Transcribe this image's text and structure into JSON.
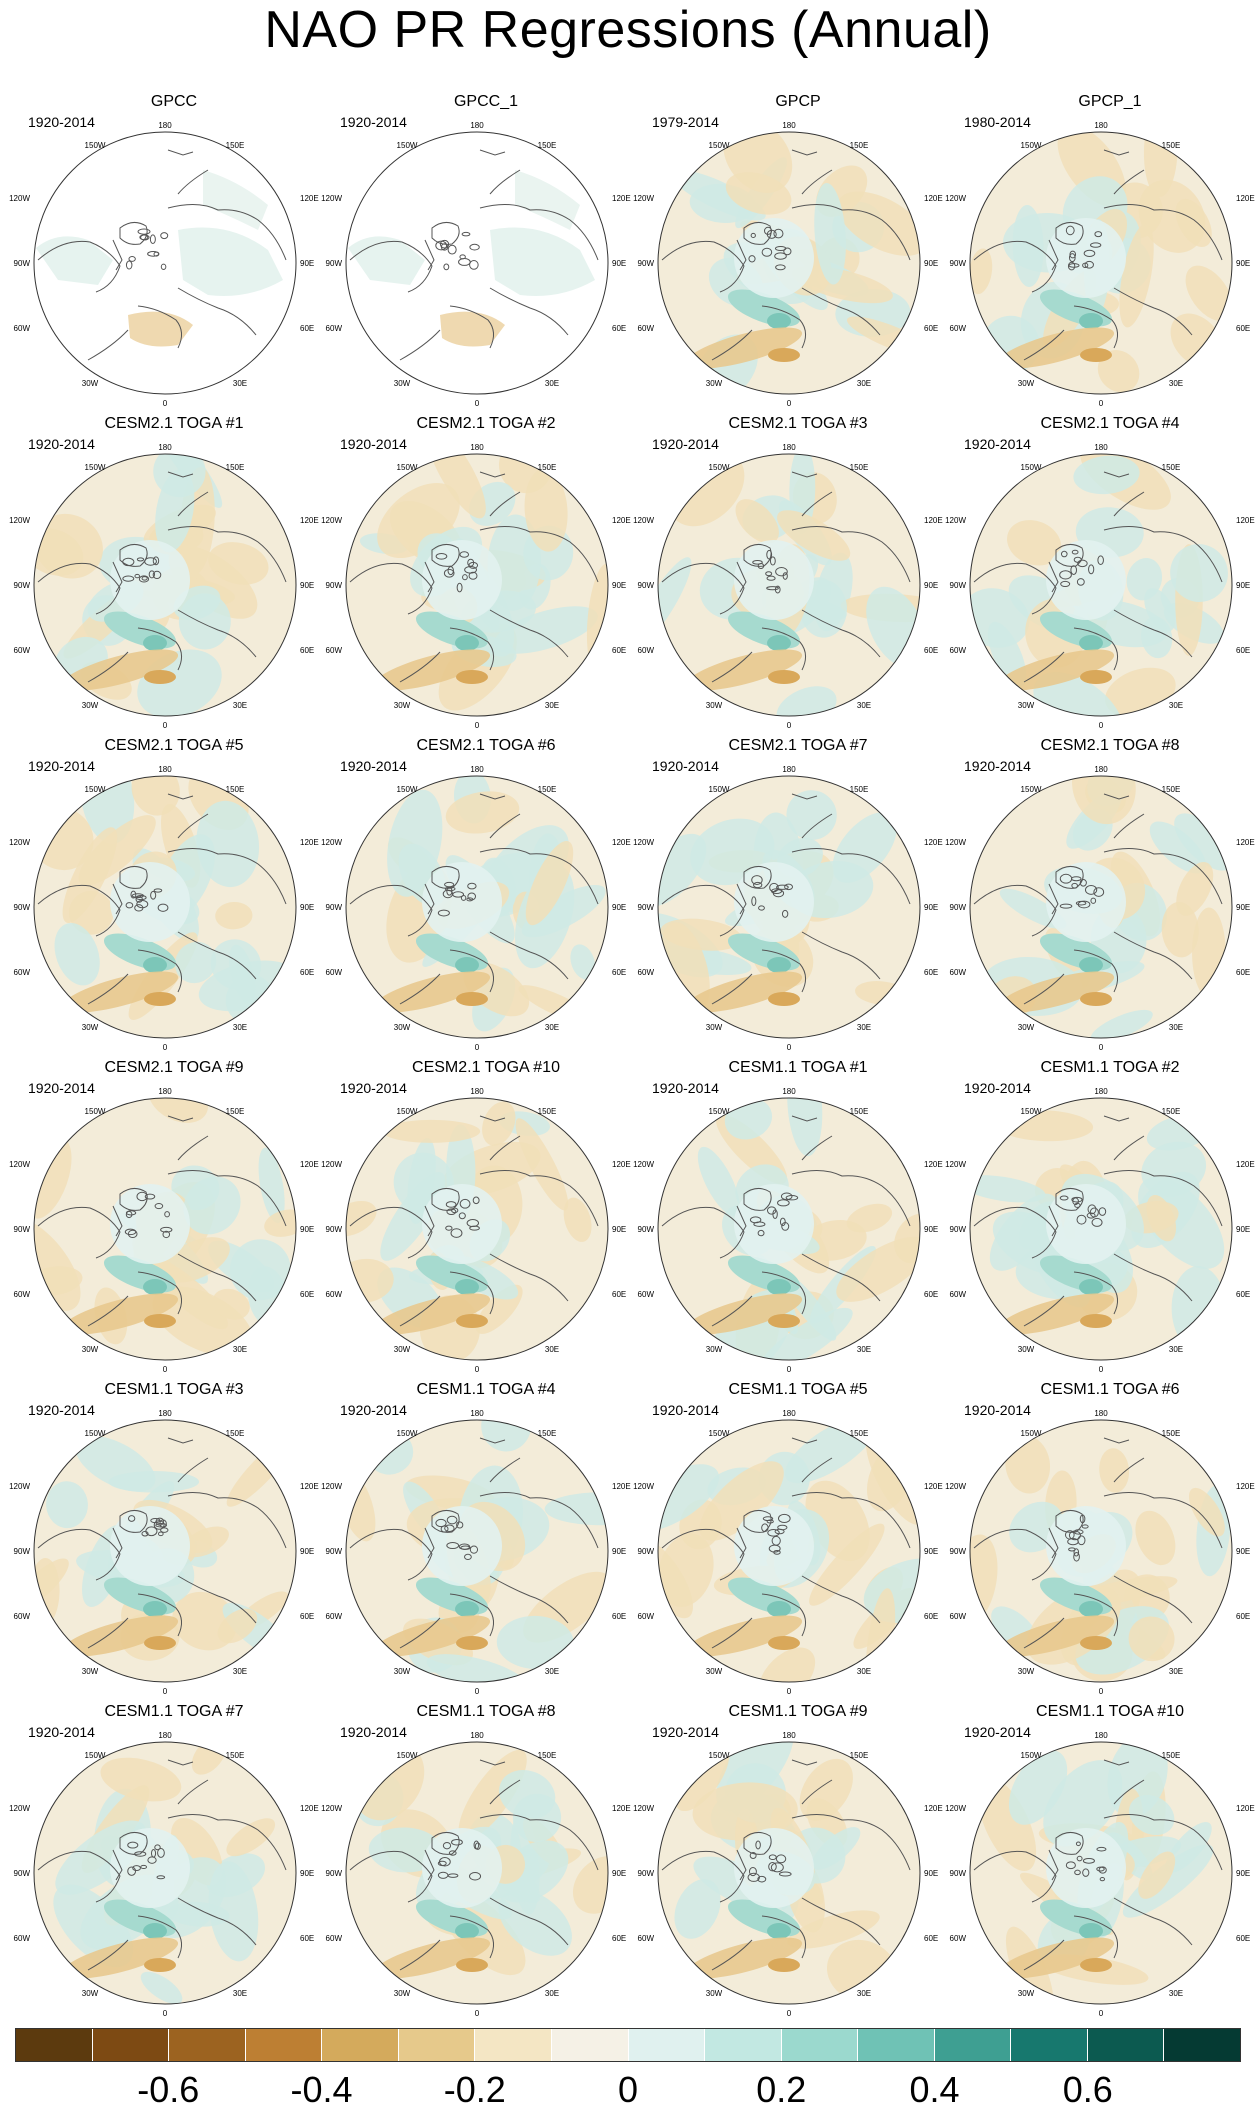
{
  "title": "NAO PR Regressions (Annual)",
  "map": {
    "projection": "north-polar-stereographic",
    "longitude_labels": {
      "top": "180",
      "upper_left": "150W",
      "upper_right": "150E",
      "left_upper": "120W",
      "right_upper": "120E",
      "left": "90W",
      "right": "90E",
      "left_lower": "60W",
      "right_lower": "60E",
      "lower_left": "30W",
      "lower_right": "30E",
      "bottom": "0"
    }
  },
  "panels": [
    {
      "title": "GPCC",
      "period": "1920-2014",
      "land_only": true
    },
    {
      "title": "GPCC_1",
      "period": "1920-2014",
      "land_only": true
    },
    {
      "title": "GPCP",
      "period": "1979-2014"
    },
    {
      "title": "GPCP_1",
      "period": "1980-2014"
    },
    {
      "title": "CESM2.1 TOGA #1",
      "period": "1920-2014"
    },
    {
      "title": "CESM2.1 TOGA #2",
      "period": "1920-2014"
    },
    {
      "title": "CESM2.1 TOGA #3",
      "period": "1920-2014"
    },
    {
      "title": "CESM2.1 TOGA #4",
      "period": "1920-2014"
    },
    {
      "title": "CESM2.1 TOGA #5",
      "period": "1920-2014"
    },
    {
      "title": "CESM2.1 TOGA #6",
      "period": "1920-2014"
    },
    {
      "title": "CESM2.1 TOGA #7",
      "period": "1920-2014"
    },
    {
      "title": "CESM2.1 TOGA #8",
      "period": "1920-2014"
    },
    {
      "title": "CESM2.1 TOGA #9",
      "period": "1920-2014"
    },
    {
      "title": "CESM2.1 TOGA #10",
      "period": "1920-2014"
    },
    {
      "title": "CESM1.1 TOGA #1",
      "period": "1920-2014"
    },
    {
      "title": "CESM1.1 TOGA #2",
      "period": "1920-2014"
    },
    {
      "title": "CESM1.1 TOGA #3",
      "period": "1920-2014"
    },
    {
      "title": "CESM1.1 TOGA #4",
      "period": "1920-2014"
    },
    {
      "title": "CESM1.1 TOGA #5",
      "period": "1920-2014"
    },
    {
      "title": "CESM1.1 TOGA #6",
      "period": "1920-2014"
    },
    {
      "title": "CESM1.1 TOGA #7",
      "period": "1920-2014"
    },
    {
      "title": "CESM1.1 TOGA #8",
      "period": "1920-2014"
    },
    {
      "title": "CESM1.1 TOGA #9",
      "period": "1920-2014"
    },
    {
      "title": "CESM1.1 TOGA #10",
      "period": "1920-2014"
    }
  ],
  "colorbar": {
    "colors": [
      "#5c3a0e",
      "#7d4a13",
      "#9c6320",
      "#bd7f33",
      "#d4aa5c",
      "#e6c98b",
      "#f4e6c4",
      "#f5f1e6",
      "#e0f1ef",
      "#c2e8e2",
      "#9bd9ce",
      "#6fc2b5",
      "#3e9f92",
      "#17786e",
      "#0c5a50",
      "#053a33"
    ],
    "labels": [
      {
        "text": "-0.6",
        "value": -0.6
      },
      {
        "text": "-0.4",
        "value": -0.4
      },
      {
        "text": "-0.2",
        "value": -0.2
      },
      {
        "text": "0",
        "value": 0
      },
      {
        "text": "0.2",
        "value": 0.2
      },
      {
        "text": "0.4",
        "value": 0.4
      },
      {
        "text": "0.6",
        "value": 0.6
      }
    ],
    "min": -0.8,
    "max": 0.8
  }
}
